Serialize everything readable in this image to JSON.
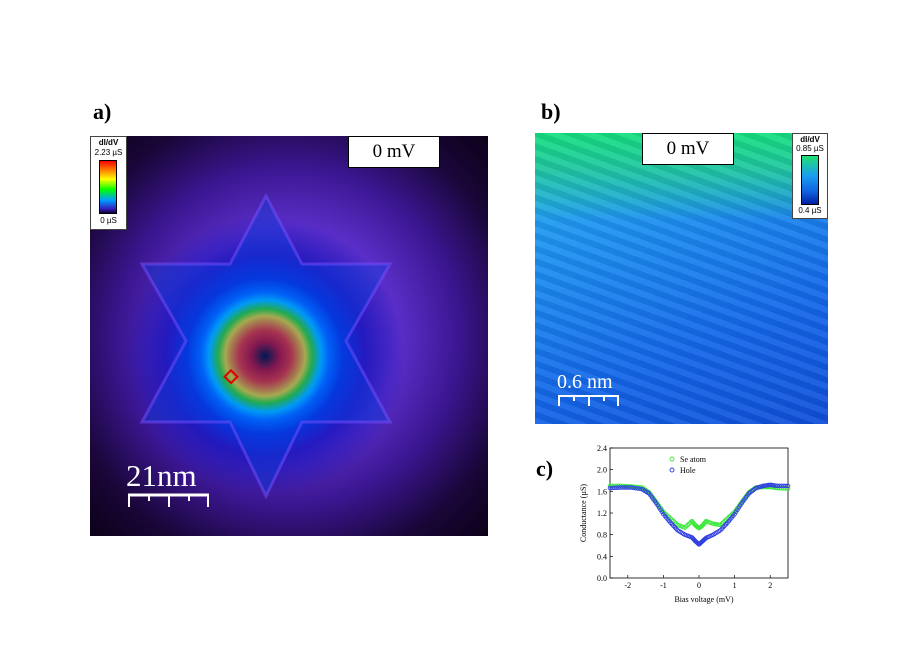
{
  "panel_a": {
    "label": "a)",
    "bias_label": "0 mV",
    "colorbar": {
      "title": "dI/dV",
      "max": "2.23 µS",
      "min": "0 µS"
    },
    "scalebar": "21nm"
  },
  "panel_b": {
    "label": "b)",
    "bias_label": "0 mV",
    "colorbar": {
      "title": "dI/dV",
      "max": "0.85 µS",
      "min": "0.4 µS"
    },
    "scalebar": "0.6 nm"
  },
  "panel_c": {
    "label": "c)",
    "chart_data": {
      "type": "scatter",
      "xlabel": "Bias voltage (mV)",
      "ylabel": "Conductance (µS)",
      "xlim": [
        -2.5,
        2.5
      ],
      "ylim": [
        0.0,
        2.4
      ],
      "xticks": [
        -2,
        -1,
        0,
        1,
        2
      ],
      "yticks": [
        0.0,
        0.4,
        0.8,
        1.2,
        1.6,
        2.0,
        2.4
      ],
      "legend_position": "top-center",
      "series": [
        {
          "name": "Se atom",
          "color": "#3ee83e",
          "x": [
            -2.5,
            -2.2,
            -1.9,
            -1.6,
            -1.4,
            -1.2,
            -1.0,
            -0.8,
            -0.6,
            -0.4,
            -0.2,
            -0.1,
            0.0,
            0.1,
            0.2,
            0.4,
            0.6,
            0.8,
            1.0,
            1.2,
            1.4,
            1.6,
            1.8,
            2.0,
            2.2,
            2.5
          ],
          "y": [
            1.7,
            1.7,
            1.69,
            1.67,
            1.58,
            1.4,
            1.22,
            1.1,
            0.98,
            0.93,
            1.05,
            0.97,
            0.92,
            0.97,
            1.05,
            1.0,
            0.98,
            1.1,
            1.22,
            1.4,
            1.58,
            1.67,
            1.68,
            1.68,
            1.66,
            1.65
          ]
        },
        {
          "name": "Hole",
          "color": "#3040e0",
          "x": [
            -2.5,
            -2.2,
            -1.9,
            -1.6,
            -1.4,
            -1.2,
            -1.0,
            -0.8,
            -0.6,
            -0.4,
            -0.2,
            -0.1,
            0.0,
            0.1,
            0.2,
            0.4,
            0.6,
            0.8,
            1.0,
            1.2,
            1.4,
            1.6,
            1.8,
            2.0,
            2.2,
            2.5
          ],
          "y": [
            1.66,
            1.67,
            1.67,
            1.64,
            1.56,
            1.38,
            1.18,
            1.02,
            0.88,
            0.8,
            0.75,
            0.68,
            0.62,
            0.68,
            0.74,
            0.8,
            0.88,
            1.02,
            1.18,
            1.38,
            1.56,
            1.66,
            1.7,
            1.72,
            1.7,
            1.7
          ]
        }
      ]
    }
  }
}
